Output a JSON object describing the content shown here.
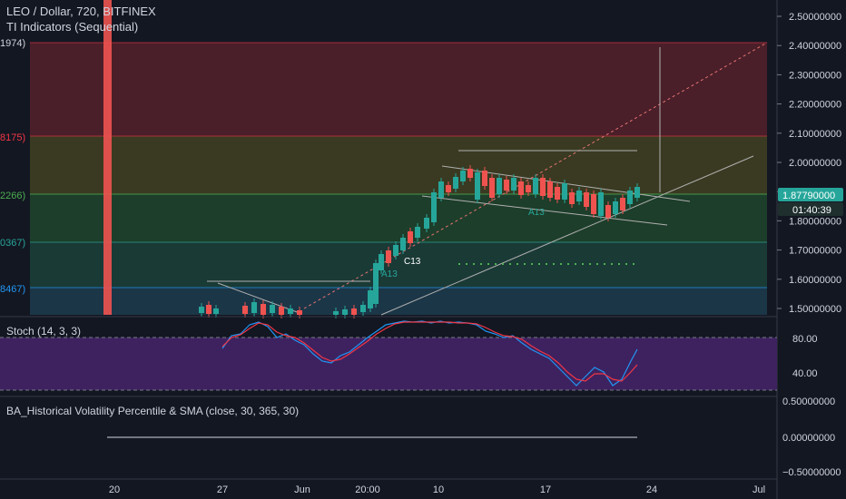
{
  "header": {
    "symbol_title": "LEO / Dollar, 720, BITFINEX",
    "indicator_label": "TI Indicators (Sequential)"
  },
  "fib_labels": [
    "1974)",
    "8175)",
    "2266)",
    "0367)",
    "8467)"
  ],
  "price_axis": {
    "ticks": [
      "2.50000000",
      "2.40000000",
      "2.30000000",
      "2.20000000",
      "2.10000000",
      "2.00000000",
      "1.90000000",
      "1.80000000",
      "1.70000000",
      "1.60000000",
      "1.50000000"
    ],
    "current_price": "1.87790000",
    "countdown": "01:40:39"
  },
  "stoch": {
    "label": "Stoch (14, 3, 3)",
    "ticks": [
      "80.00",
      "40.00"
    ]
  },
  "volatility": {
    "label": "BA_Historical Volatility Percentile & SMA (close, 30, 365, 30)",
    "ticks": [
      "0.50000000",
      "0.00000000",
      "−0.50000000"
    ]
  },
  "time_axis": {
    "ticks": [
      "20",
      "27",
      "Jun",
      "20:00",
      "10",
      "17",
      "24",
      "Jul"
    ]
  },
  "sequential_labels": {
    "a13_left": "A13",
    "c13": "C13",
    "a13_right": "A13"
  },
  "colors": {
    "background": "#131722",
    "bull": "#26a69a",
    "bear": "#ef5350",
    "stoch_k": "#2196f3",
    "stoch_d": "#f23645",
    "price_badge": "#26a69a"
  }
}
